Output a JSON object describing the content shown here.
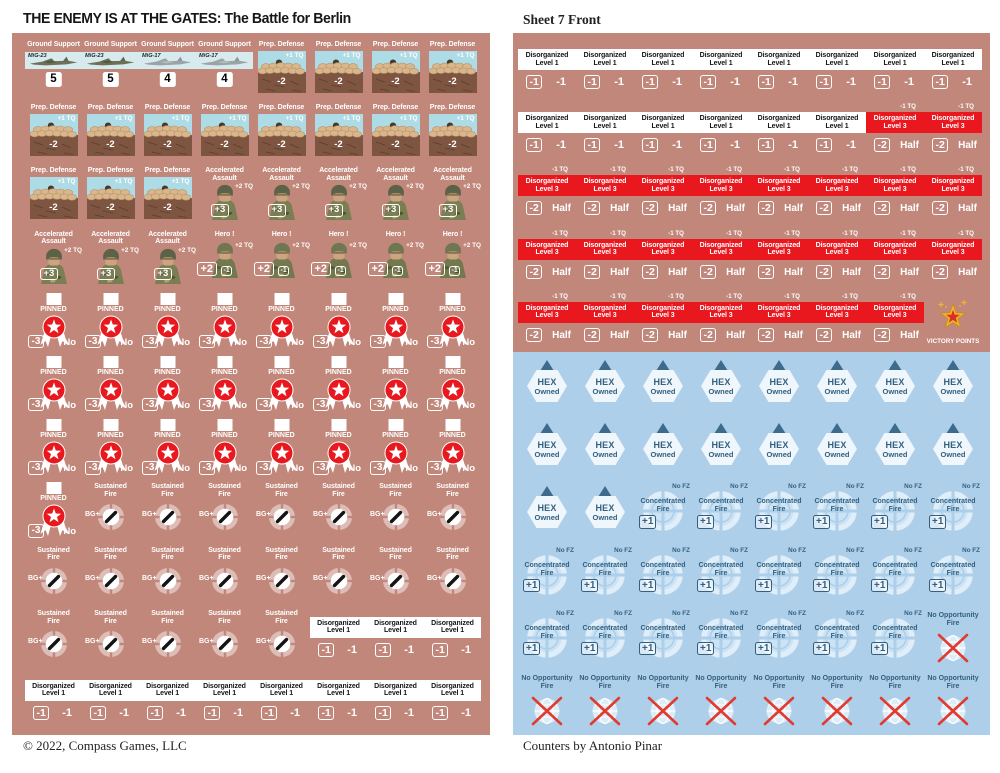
{
  "left_page": {
    "title": "THE ENEMY IS AT THE GATES: The Battle for Berlin",
    "footer": "© 2022, Compass Games, LLC",
    "rows": [
      [
        "gs23",
        "gs23",
        "gs17",
        "gs17",
        "pd",
        "pd",
        "pd",
        "pd"
      ],
      [
        "pd",
        "pd",
        "pd",
        "pd",
        "pd",
        "pd",
        "pd",
        "pd"
      ],
      [
        "pd",
        "pd",
        "pd",
        "aa",
        "aa",
        "aa",
        "aa",
        "aa"
      ],
      [
        "aa",
        "aa",
        "aa",
        "hero",
        "hero",
        "hero",
        "hero",
        "hero"
      ],
      [
        "pin",
        "pin",
        "pin",
        "pin",
        "pin",
        "pin",
        "pin",
        "pin"
      ],
      [
        "pin",
        "pin",
        "pin",
        "pin",
        "pin",
        "pin",
        "pin",
        "pin"
      ],
      [
        "pin",
        "pin",
        "pin",
        "pin",
        "pin",
        "pin",
        "pin",
        "pin"
      ],
      [
        "pin",
        "sf",
        "sf",
        "sf",
        "sf",
        "sf",
        "sf",
        "sf"
      ],
      [
        "sf",
        "sf",
        "sf",
        "sf",
        "sf",
        "sf",
        "sf",
        "sf"
      ],
      [
        "sf",
        "sf",
        "sf",
        "sf",
        "sf",
        "dl1",
        "dl1",
        "dl1"
      ],
      [
        "dl1",
        "dl1",
        "dl1",
        "dl1",
        "dl1",
        "dl1",
        "dl1",
        "dl1"
      ]
    ]
  },
  "right_page": {
    "header": "Sheet 7 Front",
    "footer": "Counters by Antonio Pinar",
    "rows": [
      [
        "dl1",
        "dl1",
        "dl1",
        "dl1",
        "dl1",
        "dl1",
        "dl1",
        "dl1"
      ],
      [
        "dl1",
        "dl1",
        "dl1",
        "dl1",
        "dl1",
        "dl1",
        "dl3",
        "dl3"
      ],
      [
        "dl3",
        "dl3",
        "dl3",
        "dl3",
        "dl3",
        "dl3",
        "dl3",
        "dl3"
      ],
      [
        "dl3",
        "dl3",
        "dl3",
        "dl3",
        "dl3",
        "dl3",
        "dl3",
        "dl3"
      ],
      [
        "dl3",
        "dl3",
        "dl3",
        "dl3",
        "dl3",
        "dl3",
        "dl3",
        "vp"
      ],
      [
        "hex",
        "hex",
        "hex",
        "hex",
        "hex",
        "hex",
        "hex",
        "hex"
      ],
      [
        "hex",
        "hex",
        "hex",
        "hex",
        "hex",
        "hex",
        "hex",
        "hex"
      ],
      [
        "hex",
        "hex",
        "cf",
        "cf",
        "cf",
        "cf",
        "cf",
        "cf"
      ],
      [
        "cf",
        "cf",
        "cf",
        "cf",
        "cf",
        "cf",
        "cf",
        "cf"
      ],
      [
        "cf",
        "cf",
        "cf",
        "cf",
        "cf",
        "cf",
        "cf",
        "nof"
      ],
      [
        "nof",
        "nof",
        "nof",
        "nof",
        "nof",
        "nof",
        "nof",
        "nof"
      ]
    ]
  },
  "counters": {
    "gs23": {
      "kind": "ground-support",
      "title": "Ground Support",
      "aircraft": "MiG-23",
      "rating": "5"
    },
    "gs17": {
      "kind": "ground-support",
      "title": "Ground Support",
      "aircraft": "MiG-17",
      "rating": "4"
    },
    "pd": {
      "kind": "prep-defense",
      "title": "Prep. Defense",
      "bonus": "+1 TQ",
      "value": "-2"
    },
    "aa": {
      "kind": "assault",
      "line1": "Accelerated",
      "line2": "Assault",
      "bonus": "+2 TQ",
      "value": "+3"
    },
    "hero": {
      "kind": "hero",
      "title": "Hero !",
      "bonus": "+2 TQ",
      "value": "+2",
      "penalty": "-1"
    },
    "pin": {
      "kind": "pinned",
      "title": "PINNED",
      "value": "-3",
      "note": "No"
    },
    "sf": {
      "kind": "sustained-fire",
      "line1": "Sustained",
      "line2": "Fire",
      "left": "BG+"
    },
    "dl1": {
      "kind": "disorganized-1",
      "line1": "Disorganized",
      "line2": "Level 1",
      "value": "-1",
      "note": "-1"
    },
    "dl3": {
      "kind": "disorganized-3",
      "tq": "-1 TQ",
      "line1": "Disorganized",
      "line2": "Level 3",
      "value": "-2",
      "note": "Half"
    },
    "vp": {
      "kind": "victory-points",
      "label": "VICTORY POINTS"
    },
    "hex": {
      "kind": "hex-owned",
      "line1": "HEX",
      "line2": "Owned"
    },
    "cf": {
      "kind": "concentrated-fire",
      "fz": "No FZ",
      "line1": "Concentrated",
      "line2": "Fire",
      "value": "+1"
    },
    "nof": {
      "kind": "no-opportunity-fire",
      "line1": "No Opportunity",
      "line2": "Fire"
    }
  },
  "colors": {
    "sheet_mauve": "#c1877a",
    "sheet_blue": "#aecfe9",
    "strip_red": "#e9181f",
    "dark_blue": "#33607f",
    "red_x": "#e23a2e",
    "gold": "#f2b42d",
    "sky": "#aedce6",
    "dirt": "#7d5541",
    "sand": "#d9b68c"
  }
}
